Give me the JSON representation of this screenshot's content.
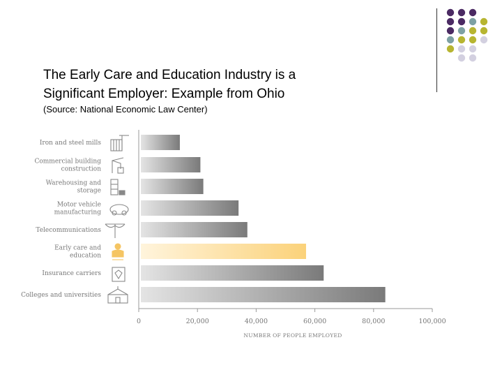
{
  "slide": {
    "title_line1": "The Early Care and Education Industry is a",
    "title_line2": "Significant Employer: Example from Ohio",
    "source": "(Source: National Economic Law Center)"
  },
  "decor": {
    "colors": {
      "purple": "#4b2a63",
      "teal": "#7ea1a4",
      "olive": "#b7b531",
      "lavender": "#d3d0e0"
    }
  },
  "chart_data": {
    "type": "bar",
    "orientation": "horizontal",
    "categories": [
      {
        "lines": [
          "Iron and steel mills"
        ],
        "icon": "steel-mill-icon"
      },
      {
        "lines": [
          "Commercial building",
          "construction"
        ],
        "icon": "construction-icon"
      },
      {
        "lines": [
          "Warehousing and",
          "storage"
        ],
        "icon": "warehouse-icon"
      },
      {
        "lines": [
          "Motor vehicle",
          "manufacturing"
        ],
        "icon": "car-icon"
      },
      {
        "lines": [
          "Telecommunications"
        ],
        "icon": "telephone-pole-icon"
      },
      {
        "lines": [
          "Early care and",
          "education"
        ],
        "icon": "child-icon"
      },
      {
        "lines": [
          "Insurance carriers"
        ],
        "icon": "insurance-icon"
      },
      {
        "lines": [
          "Colleges and universities"
        ],
        "icon": "college-icon"
      }
    ],
    "values": [
      14000,
      21000,
      22000,
      34000,
      37000,
      57000,
      63000,
      84000
    ],
    "highlight_index": 5,
    "xlim": [
      0,
      100000
    ],
    "xticks": [
      0,
      20000,
      40000,
      60000,
      80000,
      100000
    ],
    "xtick_labels": [
      "0",
      "20,000",
      "40,000",
      "60,000",
      "80,000",
      "100,000"
    ],
    "xlabel": "NUMBER OF PEOPLE EMPLOYED",
    "colors": {
      "bar_dark": "#7a7a7a",
      "bar_light": "#e4e4e4",
      "highlight_dark": "#fbd27a",
      "highlight_light": "#fff4dc"
    }
  }
}
